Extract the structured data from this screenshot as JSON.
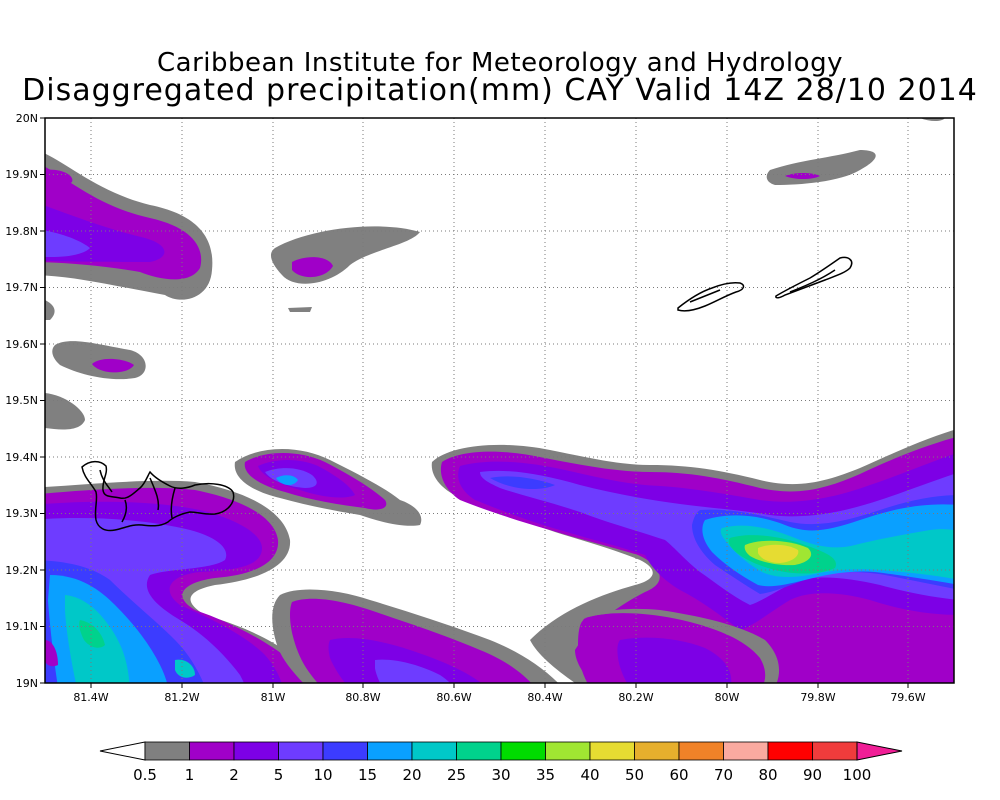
{
  "header": {
    "institute": "Caribbean Institute for Meteorology and Hydrology",
    "product": "Disaggregated precipitation(mm) CAY Valid 14Z 28/10 2014"
  },
  "axes": {
    "lat_labels": [
      "19N",
      "19.1N",
      "19.2N",
      "19.3N",
      "19.4N",
      "19.5N",
      "19.6N",
      "19.7N",
      "19.8N",
      "19.9N",
      "20N"
    ],
    "lon_labels": [
      "81.4W",
      "81.2W",
      "81W",
      "80.8W",
      "80.6W",
      "80.4W",
      "80.2W",
      "80W",
      "79.8W",
      "79.6W"
    ],
    "lat_range": [
      19.0,
      20.0
    ],
    "lon_range": [
      -81.5,
      -79.5
    ],
    "grid": "dotted"
  },
  "colorbar": {
    "labels": [
      "0.5",
      "1",
      "2",
      "5",
      "10",
      "15",
      "20",
      "25",
      "30",
      "35",
      "40",
      "50",
      "60",
      "70",
      "80",
      "90",
      "100"
    ],
    "colors": [
      "#ffffff",
      "#808080",
      "#a000c8",
      "#7d00e6",
      "#6e3cff",
      "#3c3cff",
      "#0aa0ff",
      "#00c8c8",
      "#00d28c",
      "#00dc00",
      "#a0e632",
      "#e6dc32",
      "#e6af2d",
      "#f08228",
      "#faaaa0",
      "#ff0000",
      "#f03c3c",
      "#f01e96"
    ]
  },
  "palette": {
    "gray": "#808080",
    "purple": "#a000c8",
    "violet": "#7d00e6",
    "indigo": "#6e3cff",
    "blue": "#3c3cff",
    "skyblue": "#0aa0ff",
    "teal": "#00c8c8",
    "green": "#00d28c",
    "yellow": "#e6dc32"
  }
}
